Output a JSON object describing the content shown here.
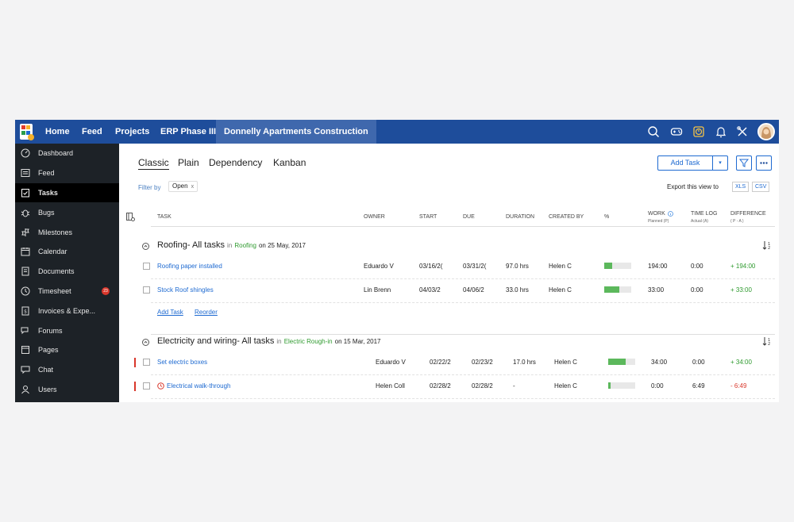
{
  "topbar": {
    "nav": [
      {
        "label": "Home"
      },
      {
        "label": "Feed"
      },
      {
        "label": "Projects"
      },
      {
        "label": "ERP Phase III"
      },
      {
        "label": "Donnelly Apartments Construction"
      }
    ],
    "icons": [
      "search-icon",
      "gamepad-icon",
      "timer-icon",
      "bell-icon",
      "tools-icon"
    ]
  },
  "sidebar": {
    "items": [
      {
        "label": "Dashboard",
        "icon": "dashboard-icon"
      },
      {
        "label": "Feed",
        "icon": "feed-icon"
      },
      {
        "label": "Tasks",
        "icon": "tasks-icon"
      },
      {
        "label": "Bugs",
        "icon": "bug-icon"
      },
      {
        "label": "Milestones",
        "icon": "milestone-icon"
      },
      {
        "label": "Calendar",
        "icon": "calendar-icon"
      },
      {
        "label": "Documents",
        "icon": "documents-icon"
      },
      {
        "label": "Timesheet",
        "icon": "timesheet-icon",
        "badge": "23"
      },
      {
        "label": "Invoices & Expe...",
        "icon": "invoice-icon"
      },
      {
        "label": "Forums",
        "icon": "forum-icon"
      },
      {
        "label": "Pages",
        "icon": "pages-icon"
      },
      {
        "label": "Chat",
        "icon": "chat-icon"
      },
      {
        "label": "Users",
        "icon": "users-icon"
      }
    ],
    "active": "Tasks"
  },
  "views": {
    "tabs": [
      "Classic",
      "Plain",
      "Dependency",
      "Kanban"
    ],
    "active": "Classic"
  },
  "filter": {
    "label": "Filter by",
    "chip": "Open",
    "chip_close": "x"
  },
  "toolbar": {
    "add_task": "Add Task",
    "caret": "▾",
    "export_label": "Export this view to",
    "xls": "XLS",
    "csv": "CSV"
  },
  "columns": {
    "task": "TASK",
    "owner": "OWNER",
    "start": "START",
    "due": "DUE",
    "duration": "DURATION",
    "created_by": "CREATED BY",
    "percent": "%",
    "work": "WORK",
    "work_sub": "Planned (P)",
    "time_log": "TIME LOG",
    "time_log_sub": "Actual (A)",
    "difference": "DIFFERENCE",
    "difference_sub": "( P - A )"
  },
  "groups": [
    {
      "title": "Roofing- All tasks",
      "in": "in",
      "milestone": "Roofing",
      "on": "on 25 May, 2017",
      "tasks": [
        {
          "name": "Roofing paper installed",
          "owner": "Eduardo V",
          "start": "03/16/2(",
          "due": "03/31/2(",
          "duration": "97.0 hrs",
          "created_by": "Helen C",
          "progress": 0.3,
          "work": "194:00",
          "time_log": "0:00",
          "difference": "+ 194:00"
        },
        {
          "name": "Stock Roof shingles",
          "owner": "Lin Brenn",
          "start": "04/03/2",
          "due": "04/06/2",
          "duration": "33.0 hrs",
          "created_by": "Helen C",
          "progress": 0.55,
          "work": "33:00",
          "time_log": "0:00",
          "difference": "+ 33:00"
        }
      ],
      "actions": {
        "add_task": "Add Task",
        "reorder": "Reorder"
      }
    },
    {
      "title": "Electricity and wiring- All tasks",
      "in": "in",
      "milestone": "Electric Rough-in",
      "on": "on 15 Mar, 2017",
      "tasks": [
        {
          "name": "Set electric boxes",
          "owner": "Eduardo V",
          "start": "02/22/2",
          "due": "02/23/2",
          "duration": "17.0 hrs",
          "created_by": "Helen C",
          "progress": 0.65,
          "work": "34:00",
          "time_log": "0:00",
          "difference": "+ 34:00"
        },
        {
          "name": "Electrical walk-through",
          "owner": "Helen Coll",
          "start": "02/28/2",
          "due": "02/28/2",
          "duration": "-",
          "created_by": "Helen C",
          "progress": 0.08,
          "work": "0:00",
          "time_log": "6:49",
          "difference": "- 6:49"
        }
      ]
    }
  ],
  "colors": {
    "topbar": "#1e4d9b",
    "sidebar": "#1d2227",
    "link": "#1e6ad1",
    "positive": "#2e9a2e",
    "negative": "#d9372b",
    "progress": "#5cb85c"
  }
}
